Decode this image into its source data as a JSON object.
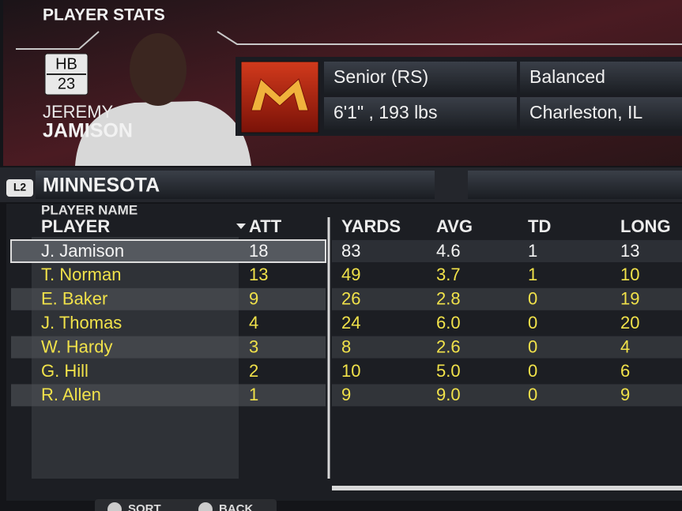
{
  "header": {
    "title": "PLAYER STATS"
  },
  "player": {
    "position": "HB",
    "number": "23",
    "first_name": "JEREMY",
    "last_name": "JAMISON"
  },
  "info": {
    "class": "Senior (RS)",
    "style": "Balanced",
    "size": "6'1\" , 193 lbs",
    "hometown": "Charleston, IL"
  },
  "team": {
    "button": "L2",
    "name": "MINNESOTA"
  },
  "table": {
    "subtitle": "PLAYER NAME",
    "columns": [
      "PLAYER",
      "ATT",
      "YARDS",
      "AVG",
      "TD",
      "LONG"
    ],
    "rows": [
      [
        "J. Jamison",
        "18",
        "83",
        "4.6",
        "1",
        "13"
      ],
      [
        "T. Norman",
        "13",
        "49",
        "3.7",
        "1",
        "10"
      ],
      [
        "E. Baker",
        "9",
        "26",
        "2.8",
        "0",
        "19"
      ],
      [
        "J. Thomas",
        "4",
        "24",
        "6.0",
        "0",
        "20"
      ],
      [
        "W. Hardy",
        "3",
        "8",
        "2.6",
        "0",
        "4"
      ],
      [
        "G. Hill",
        "2",
        "10",
        "5.0",
        "0",
        "6"
      ],
      [
        "R. Allen",
        "1",
        "9",
        "9.0",
        "0",
        "9"
      ]
    ]
  },
  "footer": {
    "sort": "SORT",
    "back": "BACK"
  }
}
